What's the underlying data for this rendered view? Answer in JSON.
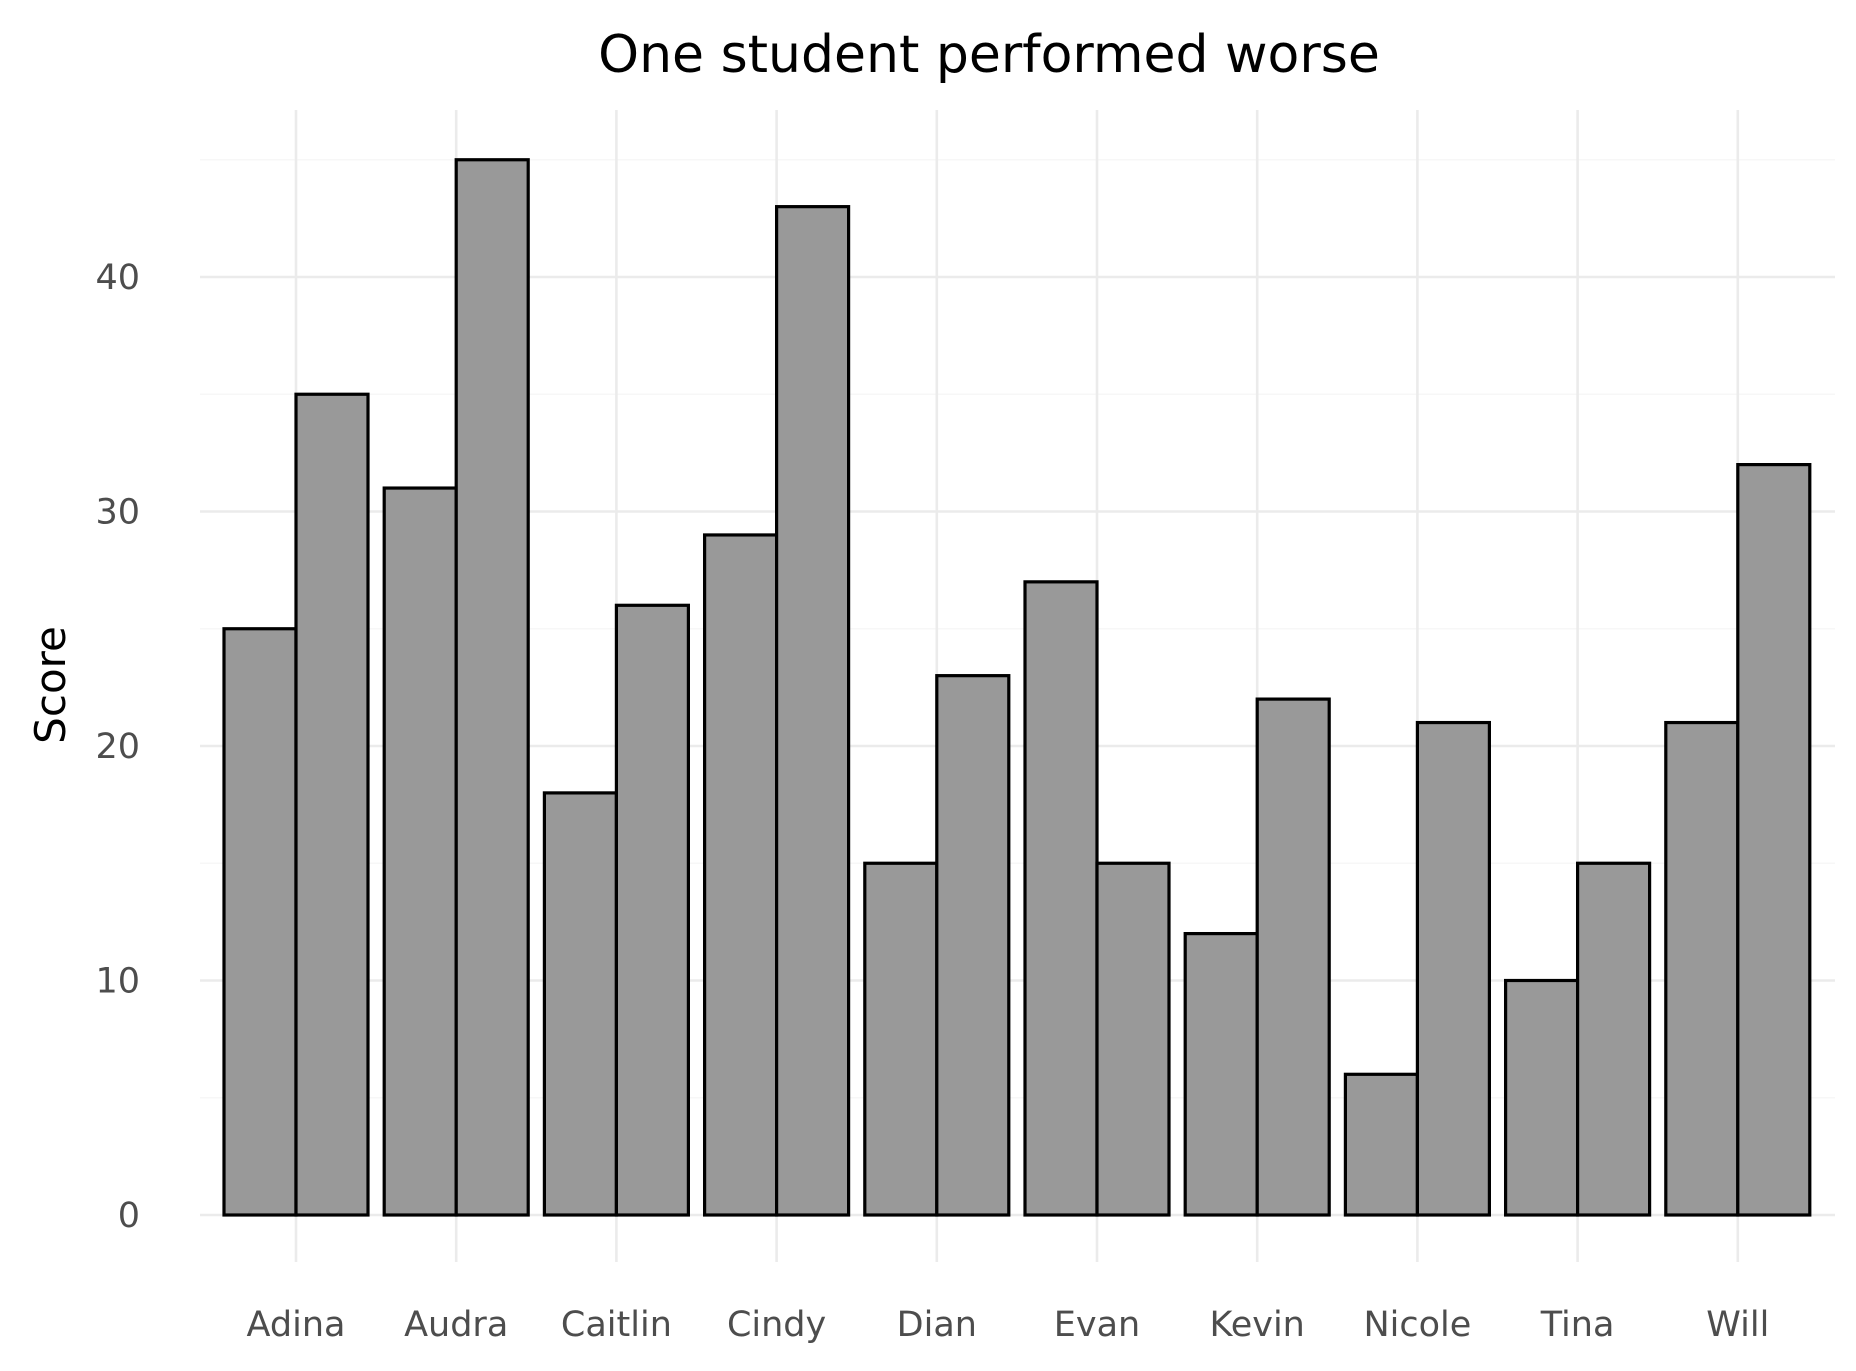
{
  "chart_data": {
    "type": "bar",
    "title": "One student performed worse",
    "xlabel": "",
    "ylabel": "Score",
    "categories": [
      "Adina",
      "Audra",
      "Caitlin",
      "Cindy",
      "Dian",
      "Evan",
      "Kevin",
      "Nicole",
      "Tina",
      "Will"
    ],
    "series": [
      {
        "values": [
          25,
          31,
          18,
          29,
          15,
          27,
          12,
          6,
          10,
          21
        ]
      },
      {
        "values": [
          35,
          45,
          26,
          43,
          23,
          15,
          22,
          21,
          15,
          32
        ]
      }
    ],
    "y_ticks": [
      "0",
      "10",
      "20",
      "30",
      "40"
    ],
    "ylim": [
      0,
      45
    ],
    "grid": true,
    "bar_fill": "#999999",
    "bar_stroke": "#000000",
    "grid_color": "#ebebeb",
    "tick_label_color": "#4d4d4d"
  }
}
